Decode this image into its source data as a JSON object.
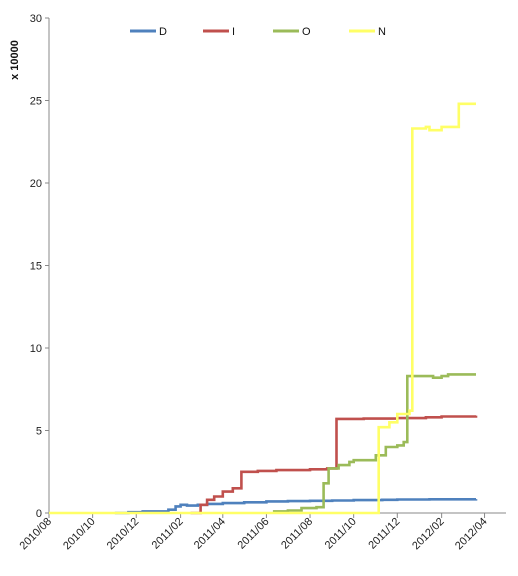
{
  "chart_data": {
    "type": "line",
    "title": "",
    "ylabel": "x 10000",
    "xlabel": "",
    "ylim": [
      0,
      30
    ],
    "yticks": [
      0,
      5,
      10,
      15,
      20,
      25,
      30
    ],
    "xlim": [
      "2010/08",
      "2012/05"
    ],
    "xticks": [
      "2010/08",
      "2010/10",
      "2010/12",
      "2011/02",
      "2011/04",
      "2011/06",
      "2011/08",
      "2011/10",
      "2011/12",
      "2012/02",
      "2012/04"
    ],
    "grid": false,
    "legend_position": "top",
    "series": [
      {
        "name": "D",
        "color": "#4f81bd",
        "points": [
          [
            "2010/11/01",
            0.0
          ],
          [
            "2010/11/20",
            0.05
          ],
          [
            "2010/12/10",
            0.1
          ],
          [
            "2011/01/15",
            0.2
          ],
          [
            "2011/01/25",
            0.4
          ],
          [
            "2011/02/01",
            0.5
          ],
          [
            "2011/02/10",
            0.45
          ],
          [
            "2011/02/25",
            0.5
          ],
          [
            "2011/03/10",
            0.55
          ],
          [
            "2011/04/01",
            0.6
          ],
          [
            "2011/05/01",
            0.65
          ],
          [
            "2011/06/01",
            0.7
          ],
          [
            "2011/07/01",
            0.72
          ],
          [
            "2011/08/01",
            0.74
          ],
          [
            "2011/09/01",
            0.76
          ],
          [
            "2011/10/01",
            0.78
          ],
          [
            "2011/11/10",
            0.8
          ],
          [
            "2011/12/01",
            0.82
          ],
          [
            "2012/01/15",
            0.83
          ],
          [
            "2012/03/20",
            0.84
          ]
        ]
      },
      {
        "name": "I",
        "color": "#c0504d",
        "points": [
          [
            "2011/02/15",
            0.0
          ],
          [
            "2011/03/01",
            0.5
          ],
          [
            "2011/03/10",
            0.8
          ],
          [
            "2011/03/20",
            1.0
          ],
          [
            "2011/04/01",
            1.3
          ],
          [
            "2011/04/15",
            1.5
          ],
          [
            "2011/04/27",
            2.5
          ],
          [
            "2011/05/20",
            2.55
          ],
          [
            "2011/06/15",
            2.6
          ],
          [
            "2011/08/01",
            2.65
          ],
          [
            "2011/08/25",
            2.7
          ],
          [
            "2011/09/07",
            5.7
          ],
          [
            "2011/10/15",
            5.72
          ],
          [
            "2011/12/01",
            5.75
          ],
          [
            "2012/01/10",
            5.8
          ],
          [
            "2012/02/01",
            5.85
          ],
          [
            "2012/03/20",
            5.9
          ]
        ]
      },
      {
        "name": "O",
        "color": "#9bbb59",
        "points": [
          [
            "2011/06/10",
            0.1
          ],
          [
            "2011/07/01",
            0.15
          ],
          [
            "2011/07/20",
            0.3
          ],
          [
            "2011/08/10",
            0.35
          ],
          [
            "2011/08/20",
            1.8
          ],
          [
            "2011/08/27",
            2.7
          ],
          [
            "2011/09/10",
            2.9
          ],
          [
            "2011/09/25",
            3.1
          ],
          [
            "2011/10/01",
            3.2
          ],
          [
            "2011/11/01",
            3.5
          ],
          [
            "2011/11/15",
            4.0
          ],
          [
            "2011/12/01",
            4.1
          ],
          [
            "2011/12/10",
            4.3
          ],
          [
            "2011/12/15",
            8.3
          ],
          [
            "2012/01/20",
            8.2
          ],
          [
            "2012/02/01",
            8.3
          ],
          [
            "2012/02/10",
            8.4
          ],
          [
            "2012/03/20",
            8.4
          ]
        ]
      },
      {
        "name": "N",
        "color": "#ffff66",
        "points": [
          [
            "2010/08/01",
            0.0
          ],
          [
            "2011/11/01",
            0.0
          ],
          [
            "2011/11/05",
            5.2
          ],
          [
            "2011/11/20",
            5.5
          ],
          [
            "2011/12/01",
            6.0
          ],
          [
            "2011/12/18",
            6.2
          ],
          [
            "2011/12/22",
            23.3
          ],
          [
            "2012/01/10",
            23.4
          ],
          [
            "2012/01/15",
            23.2
          ],
          [
            "2012/02/01",
            23.4
          ],
          [
            "2012/02/25",
            24.8
          ],
          [
            "2012/03/20",
            24.8
          ]
        ]
      }
    ]
  }
}
